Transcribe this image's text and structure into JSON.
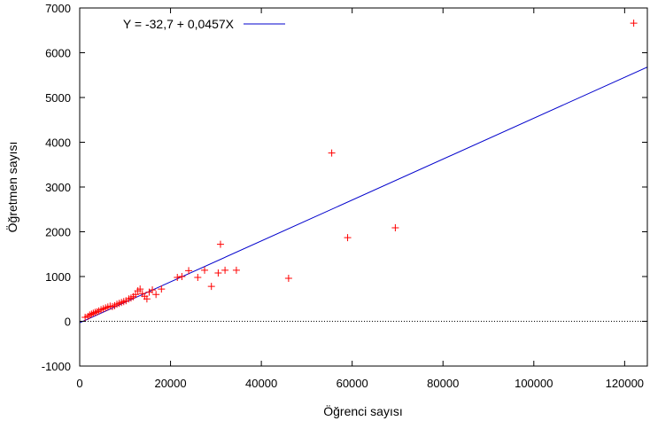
{
  "chart_data": {
    "type": "scatter",
    "xlabel": "Öğrenci sayısı",
    "ylabel": "Öğretmen sayısı",
    "xlim": [
      0,
      125000
    ],
    "ylim": [
      -1000,
      7000
    ],
    "x_ticks": [
      0,
      20000,
      40000,
      60000,
      80000,
      100000,
      120000
    ],
    "y_ticks": [
      -1000,
      0,
      1000,
      2000,
      3000,
      4000,
      5000,
      6000,
      7000
    ],
    "x_tick_labels": [
      "0",
      "20000",
      "40000",
      "60000",
      "80000",
      "100000",
      "120000"
    ],
    "y_tick_labels": [
      "-1000",
      "0",
      "1000",
      "2000",
      "3000",
      "4000",
      "5000",
      "6000",
      "7000"
    ],
    "zero_line": "dotted",
    "grid": false,
    "legend_position": "top-left",
    "colors": {
      "points": "#ff0000",
      "fit": "#0000cc"
    },
    "fit": {
      "label": "Y = -32,7 + 0,0457X",
      "intercept": -32.7,
      "slope": 0.0457
    },
    "points": [
      [
        1200,
        90
      ],
      [
        1800,
        110
      ],
      [
        2200,
        140
      ],
      [
        2600,
        160
      ],
      [
        3000,
        180
      ],
      [
        3400,
        200
      ],
      [
        3800,
        210
      ],
      [
        4200,
        230
      ],
      [
        4700,
        260
      ],
      [
        5200,
        280
      ],
      [
        5700,
        300
      ],
      [
        6200,
        320
      ],
      [
        6700,
        340
      ],
      [
        7200,
        330
      ],
      [
        7700,
        350
      ],
      [
        8200,
        380
      ],
      [
        8700,
        400
      ],
      [
        9200,
        420
      ],
      [
        9700,
        440
      ],
      [
        10200,
        460
      ],
      [
        10800,
        500
      ],
      [
        11300,
        520
      ],
      [
        11800,
        550
      ],
      [
        12300,
        600
      ],
      [
        12800,
        680
      ],
      [
        13300,
        720
      ],
      [
        13800,
        620
      ],
      [
        14300,
        560
      ],
      [
        14800,
        500
      ],
      [
        15300,
        650
      ],
      [
        16000,
        700
      ],
      [
        16800,
        600
      ],
      [
        18000,
        720
      ],
      [
        21500,
        980
      ],
      [
        22500,
        1000
      ],
      [
        24000,
        1130
      ],
      [
        26000,
        980
      ],
      [
        27500,
        1140
      ],
      [
        29000,
        780
      ],
      [
        30500,
        1080
      ],
      [
        31000,
        1720
      ],
      [
        32000,
        1140
      ],
      [
        34500,
        1140
      ],
      [
        46000,
        960
      ],
      [
        55500,
        3760
      ],
      [
        59000,
        1870
      ],
      [
        69500,
        2090
      ],
      [
        122000,
        6660
      ]
    ]
  }
}
